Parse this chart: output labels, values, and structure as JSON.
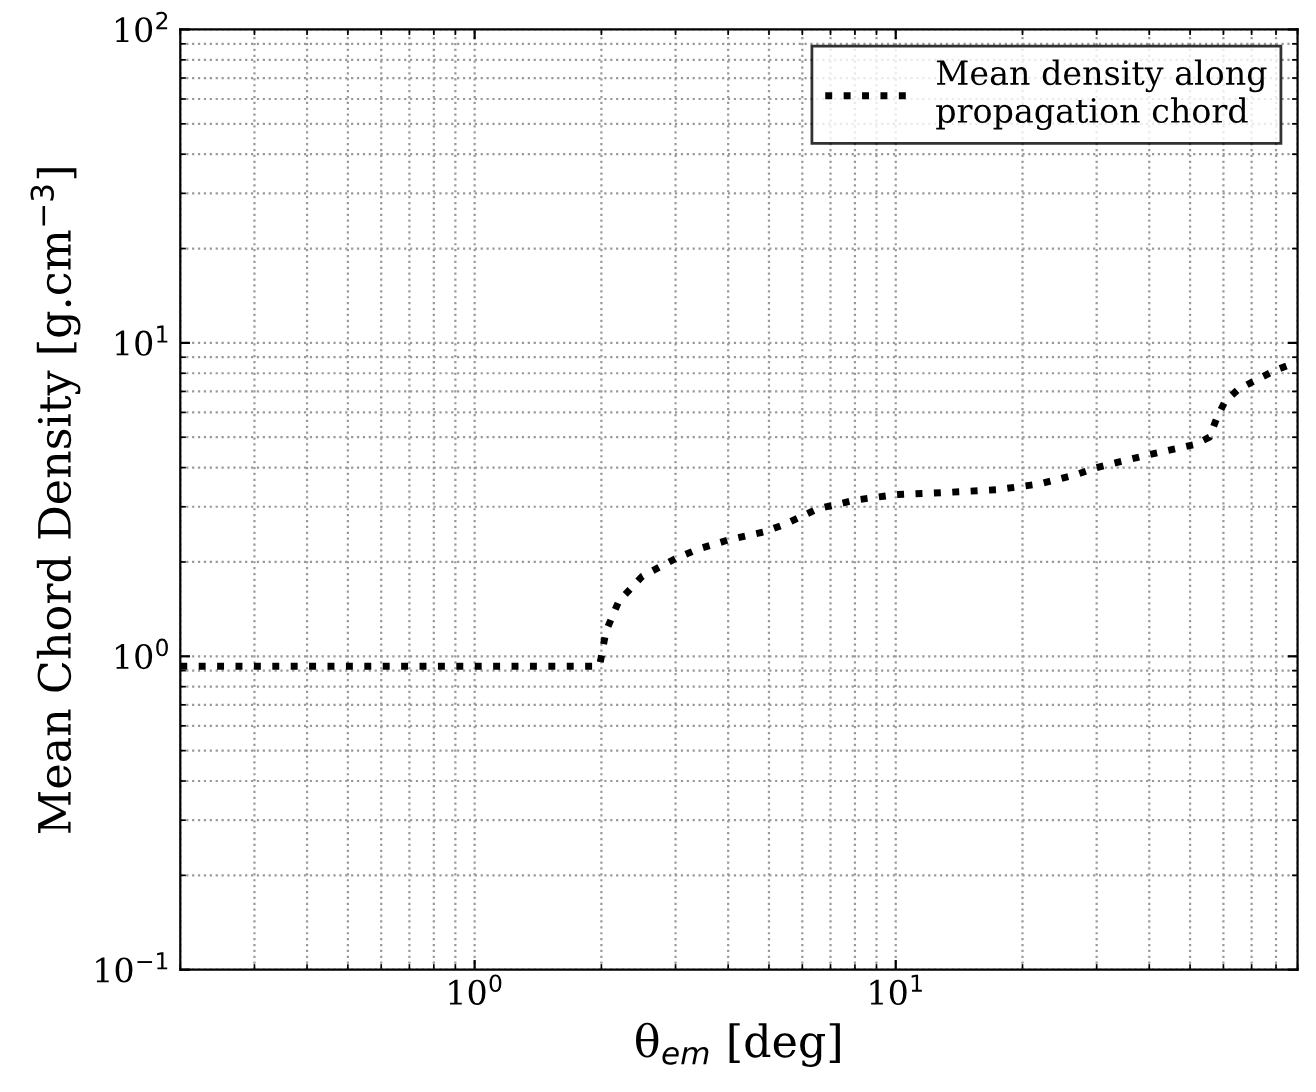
{
  "chart_data": {
    "type": "line",
    "xlabel": "θ$_{em}$ [deg]",
    "ylabel": "Mean Chord Density [g.cm$^{−3}$]",
    "log": "xy",
    "xlim": [
      0.2,
      90
    ],
    "ylim": [
      0.1,
      100
    ],
    "xticks": [
      {
        "value": 1,
        "label": "10$^{0}$"
      },
      {
        "value": 10,
        "label": "10$^{1}$"
      }
    ],
    "yticks": [
      {
        "value": 0.1,
        "label": "10$^{−1}$"
      },
      {
        "value": 1,
        "label": "10$^{0}$"
      },
      {
        "value": 10,
        "label": "10$^{1}$"
      },
      {
        "value": 100,
        "label": "10$^{2}$"
      }
    ],
    "grid": true,
    "legend": "top right",
    "line_style": "dotted",
    "marker": "none",
    "series": [
      {
        "name": "Mean density along\npropagation chord",
        "color": "#000000",
        "x": [
          0.2,
          0.5,
          1,
          1.5,
          1.98,
          2.05,
          2.2,
          2.5,
          3,
          3.4,
          4,
          4.9,
          5.5,
          6.5,
          8,
          10,
          13,
          17.4,
          22,
          26.8,
          30,
          33.4,
          40,
          51.5,
          55.6,
          58,
          60.5,
          65,
          71.5,
          80,
          90
        ],
        "values": [
          0.93,
          0.93,
          0.93,
          0.93,
          0.93,
          1.2,
          1.5,
          1.8,
          2.05,
          2.2,
          2.35,
          2.5,
          2.65,
          2.95,
          3.15,
          3.28,
          3.33,
          3.4,
          3.55,
          3.8,
          4.0,
          4.15,
          4.4,
          4.75,
          5.0,
          5.8,
          6.5,
          7.1,
          7.6,
          8.2,
          8.7
        ]
      }
    ]
  }
}
